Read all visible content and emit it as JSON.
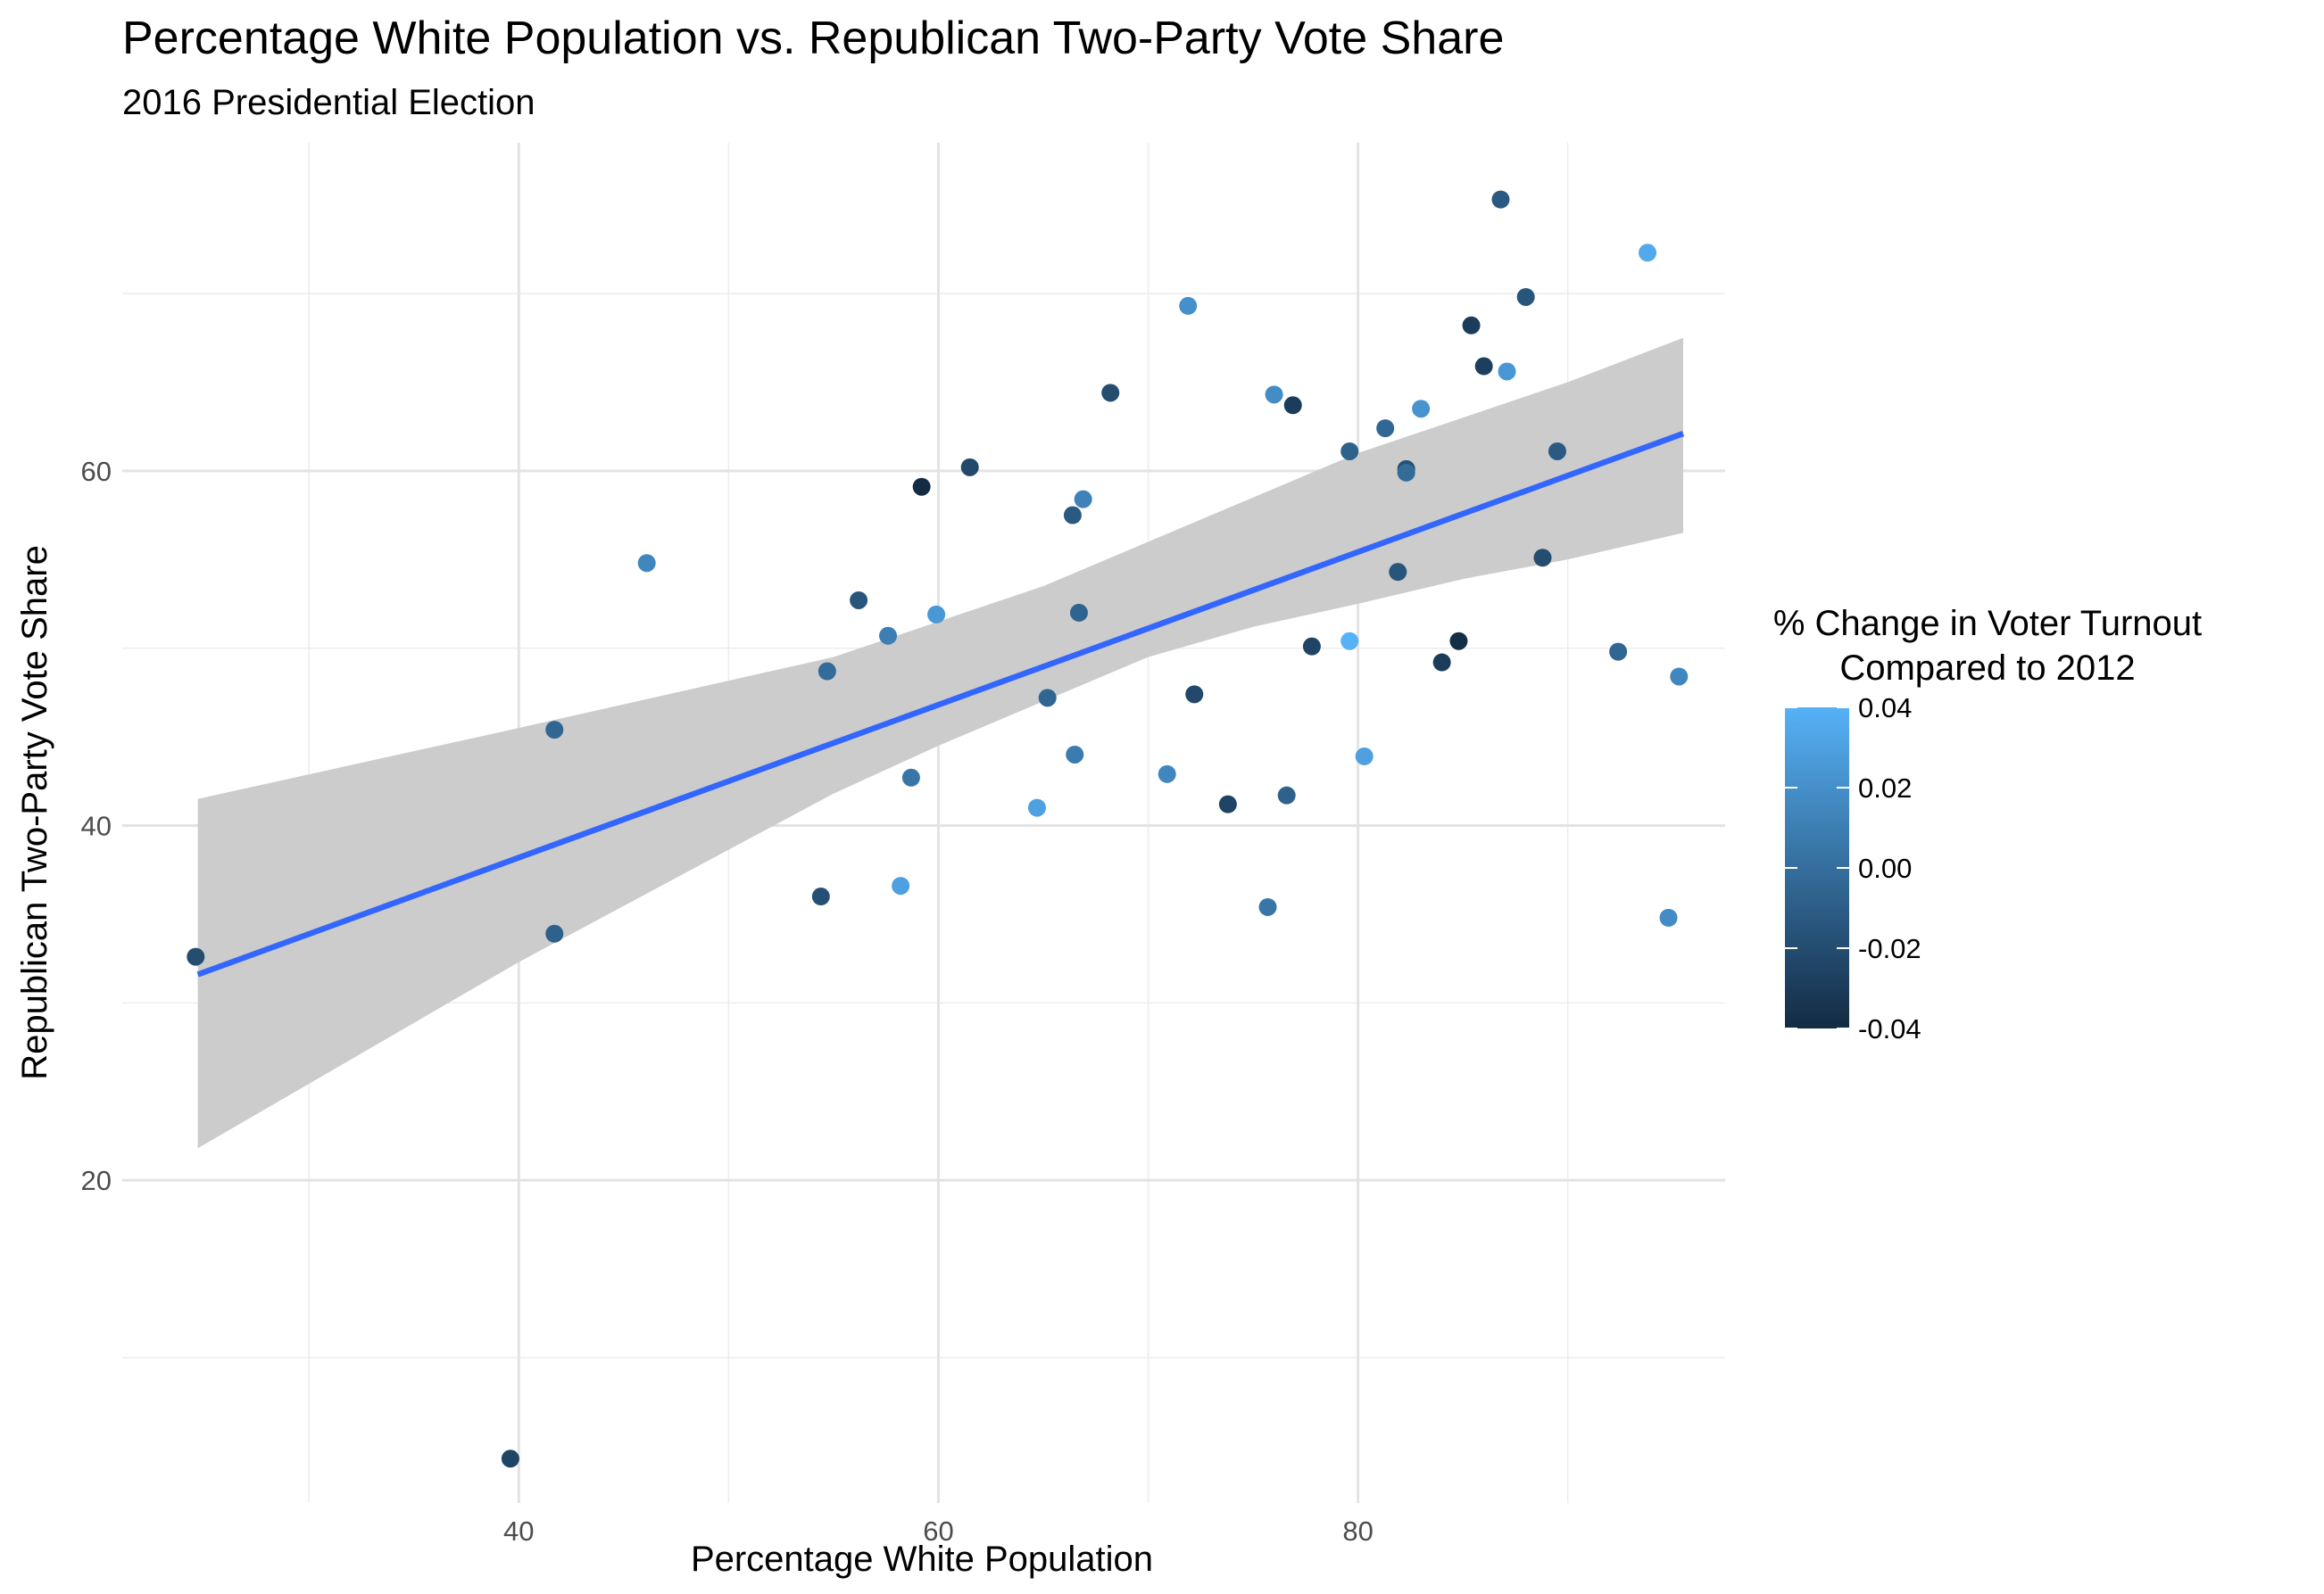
{
  "chart_data": {
    "type": "scatter",
    "title": "Percentage White Population vs. Republican Two-Party Vote Share",
    "subtitle": "2016 Presidential Election",
    "xlabel": "Percentage White Population",
    "ylabel": "Republican Two-Party Vote Share",
    "xlim": [
      21.1,
      97.5
    ],
    "ylim": [
      1.8,
      78.5
    ],
    "x_ticks": [
      40,
      60,
      80
    ],
    "y_ticks": [
      20,
      40,
      60
    ],
    "x_minor_ticks": [
      30,
      50,
      70,
      90
    ],
    "y_minor_ticks": [
      10,
      30,
      50,
      70
    ],
    "grid": true,
    "legend": {
      "title": [
        "% Change in Voter Turnout",
        "Compared to 2012"
      ],
      "placement": "right",
      "type": "colorbar",
      "breaks": [
        0.04,
        0.02,
        0.0,
        -0.02,
        -0.04
      ],
      "labels": [
        "0.04",
        "0.02",
        "0.00",
        "-0.02",
        "-0.04"
      ],
      "range": [
        -0.04,
        0.04
      ],
      "low_color": "#132b43",
      "high_color": "#56b1f7"
    },
    "trend": {
      "method": "linear",
      "color": "#3366ff",
      "ribbon_color": "#cccccc",
      "start": [
        24.7,
        31.6
      ],
      "end": [
        95.5,
        62.1
      ],
      "ribbon": [
        [
          24.7,
          21.8,
          41.5
        ],
        [
          40.0,
          32.3,
          45.5
        ],
        [
          55.0,
          41.8,
          49.5
        ],
        [
          60.0,
          44.5,
          51.5
        ],
        [
          65.0,
          47.0,
          53.5
        ],
        [
          70.0,
          49.5,
          56.0
        ],
        [
          75.0,
          51.2,
          58.5
        ],
        [
          80.0,
          52.5,
          61.0
        ],
        [
          85.0,
          53.9,
          63.0
        ],
        [
          90.0,
          55.0,
          65.0
        ],
        [
          95.5,
          56.5,
          67.5
        ]
      ]
    },
    "series": [
      {
        "points": [
          {
            "x": 24.6,
            "y": 32.6,
            "turnout": -0.02
          },
          {
            "x": 39.6,
            "y": 4.3,
            "turnout": -0.025
          },
          {
            "x": 41.7,
            "y": 45.4,
            "turnout": -0.005
          },
          {
            "x": 41.7,
            "y": 33.9,
            "turnout": -0.008
          },
          {
            "x": 46.1,
            "y": 54.8,
            "turnout": 0.015
          },
          {
            "x": 54.4,
            "y": 36.0,
            "turnout": -0.018
          },
          {
            "x": 54.7,
            "y": 48.7,
            "turnout": -0.002
          },
          {
            "x": 56.2,
            "y": 52.7,
            "turnout": -0.015
          },
          {
            "x": 57.6,
            "y": 50.7,
            "turnout": 0.01
          },
          {
            "x": 58.2,
            "y": 36.6,
            "turnout": 0.03
          },
          {
            "x": 58.7,
            "y": 42.7,
            "turnout": 0.005
          },
          {
            "x": 59.2,
            "y": 59.1,
            "turnout": -0.04
          },
          {
            "x": 59.9,
            "y": 51.9,
            "turnout": 0.025
          },
          {
            "x": 61.5,
            "y": 60.2,
            "turnout": -0.022
          },
          {
            "x": 64.7,
            "y": 41.0,
            "turnout": 0.03
          },
          {
            "x": 65.2,
            "y": 47.2,
            "turnout": -0.005
          },
          {
            "x": 66.4,
            "y": 57.5,
            "turnout": -0.012
          },
          {
            "x": 66.5,
            "y": 44.0,
            "turnout": 0.008
          },
          {
            "x": 66.7,
            "y": 52.0,
            "turnout": -0.006
          },
          {
            "x": 66.9,
            "y": 58.4,
            "turnout": 0.012
          },
          {
            "x": 68.2,
            "y": 64.4,
            "turnout": -0.02
          },
          {
            "x": 70.9,
            "y": 42.9,
            "turnout": 0.015
          },
          {
            "x": 71.9,
            "y": 69.3,
            "turnout": 0.02
          },
          {
            "x": 72.2,
            "y": 47.4,
            "turnout": -0.022
          },
          {
            "x": 73.8,
            "y": 41.2,
            "turnout": -0.025
          },
          {
            "x": 75.7,
            "y": 35.4,
            "turnout": 0.005
          },
          {
            "x": 76.0,
            "y": 64.3,
            "turnout": 0.018
          },
          {
            "x": 76.6,
            "y": 41.7,
            "turnout": -0.008
          },
          {
            "x": 76.9,
            "y": 63.7,
            "turnout": -0.03
          },
          {
            "x": 77.8,
            "y": 50.1,
            "turnout": -0.025
          },
          {
            "x": 79.6,
            "y": 61.1,
            "turnout": -0.008
          },
          {
            "x": 79.6,
            "y": 50.4,
            "turnout": 0.04
          },
          {
            "x": 80.3,
            "y": 43.9,
            "turnout": 0.03
          },
          {
            "x": 81.3,
            "y": 62.4,
            "turnout": -0.004
          },
          {
            "x": 81.9,
            "y": 54.3,
            "turnout": -0.015
          },
          {
            "x": 82.3,
            "y": 60.1,
            "turnout": -0.018
          },
          {
            "x": 82.3,
            "y": 59.9,
            "turnout": -0.002
          },
          {
            "x": 83.0,
            "y": 63.5,
            "turnout": 0.022
          },
          {
            "x": 84.0,
            "y": 49.2,
            "turnout": -0.03
          },
          {
            "x": 84.8,
            "y": 50.4,
            "turnout": -0.038
          },
          {
            "x": 85.4,
            "y": 68.2,
            "turnout": -0.03
          },
          {
            "x": 86.0,
            "y": 65.9,
            "turnout": -0.028
          },
          {
            "x": 86.8,
            "y": 75.3,
            "turnout": -0.012
          },
          {
            "x": 87.1,
            "y": 65.6,
            "turnout": 0.025
          },
          {
            "x": 88.0,
            "y": 69.8,
            "turnout": -0.015
          },
          {
            "x": 88.8,
            "y": 55.1,
            "turnout": -0.02
          },
          {
            "x": 89.5,
            "y": 61.1,
            "turnout": -0.012
          },
          {
            "x": 92.4,
            "y": 49.8,
            "turnout": -0.005
          },
          {
            "x": 93.8,
            "y": 72.3,
            "turnout": 0.035
          },
          {
            "x": 94.8,
            "y": 34.8,
            "turnout": 0.018
          },
          {
            "x": 95.3,
            "y": 48.4,
            "turnout": 0.015
          }
        ]
      }
    ]
  }
}
